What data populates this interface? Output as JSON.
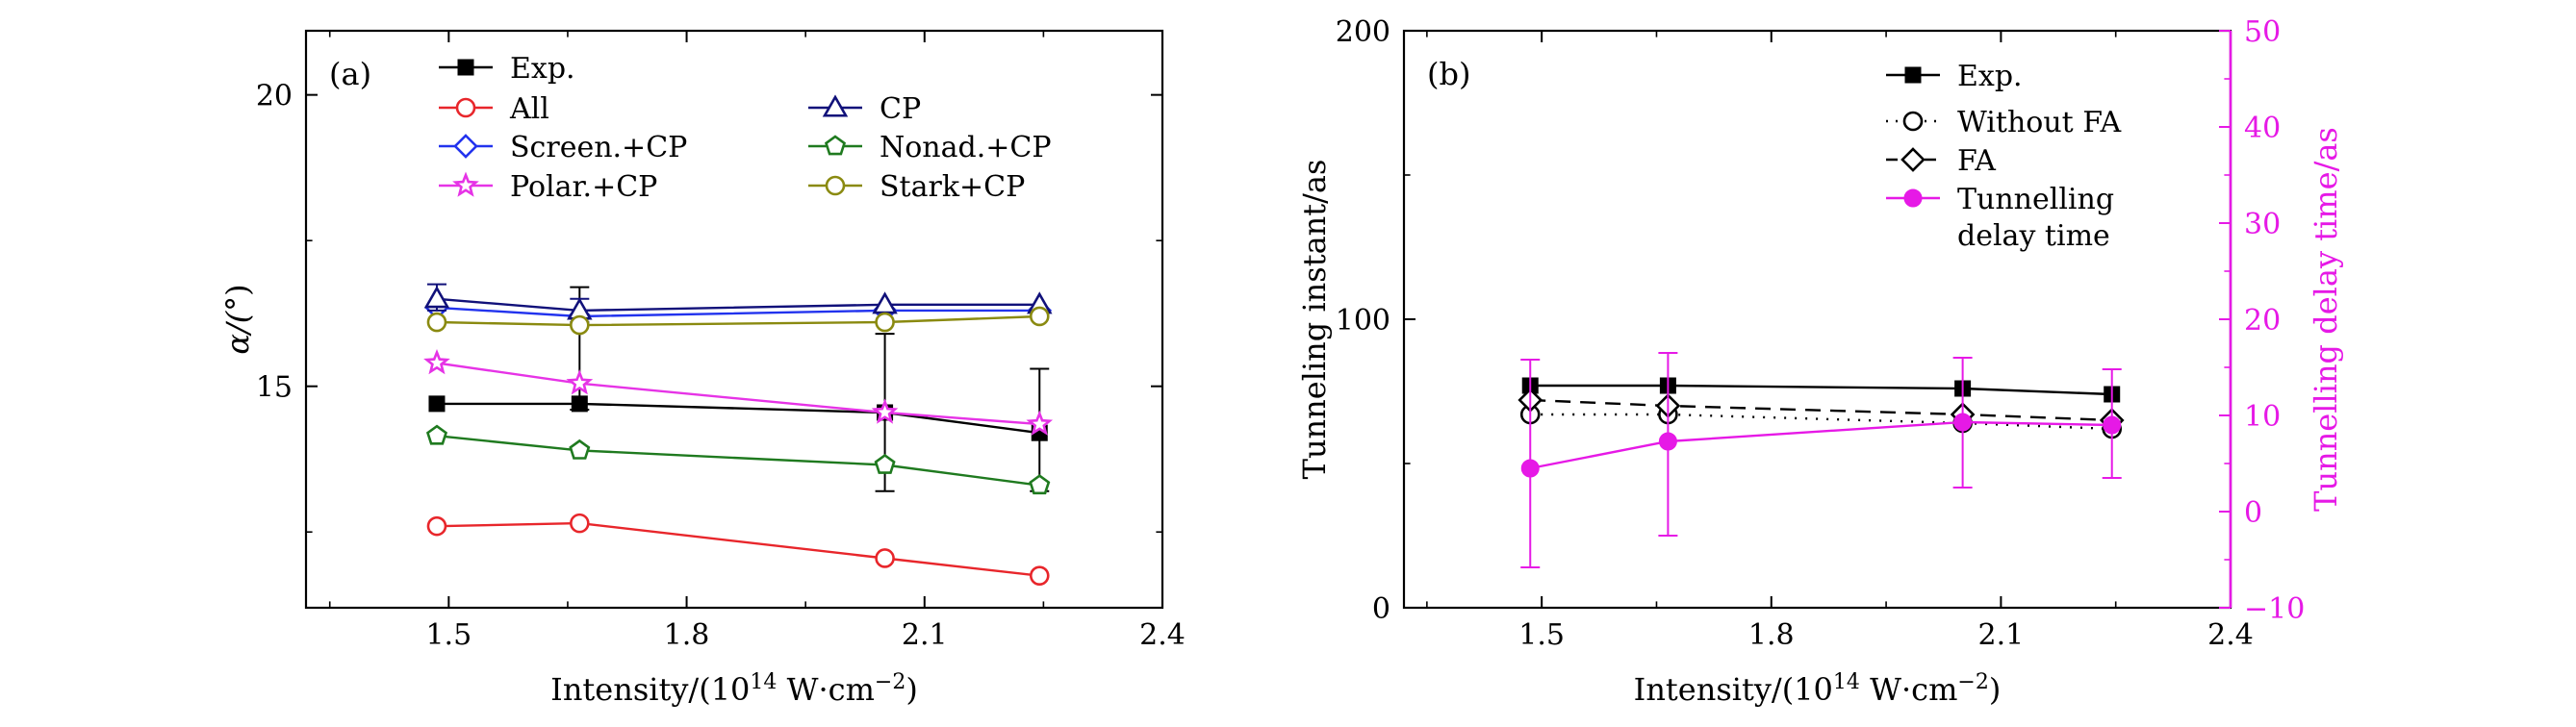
{
  "chart_data": [
    {
      "type": "line",
      "panel_label": "(a)",
      "xlabel_prefix": "Intensity/(10",
      "xlabel_exp1": "14",
      "xlabel_mid": " W·cm",
      "xlabel_exp2": "−2",
      "xlabel_suffix": ")",
      "ylabel_prefix": "α/(",
      "ylabel_degree": "°",
      "ylabel_suffix": ")",
      "xlim": [
        1.32,
        2.4
      ],
      "ylim": [
        11.2,
        21.1
      ],
      "xticks": [
        1.5,
        1.8,
        2.1,
        2.4
      ],
      "xtick_labels": [
        "1.5",
        "1.8",
        "2.1",
        "2.4"
      ],
      "yticks": [
        15,
        20
      ],
      "ytick_labels": [
        "15",
        "20"
      ],
      "legend_position": "top",
      "x": [
        1.485,
        1.665,
        2.05,
        2.245
      ],
      "series": [
        {
          "name": "Exp.",
          "values": [
            14.7,
            14.7,
            14.55,
            14.2
          ],
          "color": "#000000",
          "marker": "square-filled",
          "dash": "solid",
          "error": [
            [
              null,
              null
            ],
            [
              14.6,
              16.7
            ],
            [
              13.2,
              15.9
            ],
            [
              13.2,
              15.3
            ]
          ]
        },
        {
          "name": "All",
          "values": [
            12.6,
            12.65,
            12.05,
            11.75
          ],
          "color": "#e8262b",
          "marker": "circle",
          "dash": "solid"
        },
        {
          "name": "Screen.+CP",
          "values": [
            16.35,
            16.2,
            16.3,
            16.3
          ],
          "color": "#2233ee",
          "marker": "diamond",
          "dash": "solid"
        },
        {
          "name": "Polar.+CP",
          "values": [
            15.4,
            15.05,
            14.55,
            14.35
          ],
          "color": "#e633e6",
          "marker": "star",
          "dash": "solid"
        },
        {
          "name": "CP",
          "values": [
            16.5,
            16.3,
            16.4,
            16.4
          ],
          "color": "#11117a",
          "marker": "triangle",
          "dash": "solid",
          "error": [
            [
              16.3,
              16.75
            ],
            [
              16.1,
              16.5
            ],
            [
              null,
              null
            ],
            [
              null,
              null
            ]
          ]
        },
        {
          "name": "Nonad.+CP",
          "values": [
            14.15,
            13.9,
            13.65,
            13.3
          ],
          "color": "#1f7a1f",
          "marker": "pentagon",
          "dash": "solid"
        },
        {
          "name": "Stark+CP",
          "values": [
            16.1,
            16.05,
            16.1,
            16.2
          ],
          "color": "#8a8a10",
          "marker": "circle",
          "dash": "solid"
        }
      ]
    },
    {
      "type": "line",
      "panel_label": "(b)",
      "xlabel_prefix": "Intensity/(10",
      "xlabel_exp1": "14",
      "xlabel_mid": " W·cm",
      "xlabel_exp2": "−2",
      "xlabel_suffix": ")",
      "ylabel_left": "Tunneling instant/as",
      "ylabel_right": "Tunnelling delay time/as",
      "right_axis_color": "#e619e6",
      "xlim": [
        1.32,
        2.4
      ],
      "ylim_left": [
        0,
        200
      ],
      "ylim_right": [
        -10,
        50
      ],
      "xticks": [
        1.5,
        1.8,
        2.1,
        2.4
      ],
      "xtick_labels": [
        "1.5",
        "1.8",
        "2.1",
        "2.4"
      ],
      "yticks_left": [
        0,
        100,
        200
      ],
      "ytick_labels_left": [
        "0",
        "100",
        "200"
      ],
      "yticks_right": [
        -10,
        0,
        10,
        20,
        30,
        40,
        50
      ],
      "ytick_labels_right": [
        "−10",
        "0",
        "10",
        "20",
        "30",
        "40",
        "50"
      ],
      "legend_position": "top-right",
      "x": [
        1.485,
        1.665,
        2.05,
        2.245
      ],
      "series": [
        {
          "name": "Exp.",
          "axis": "left",
          "values": [
            77,
            77,
            76,
            74
          ],
          "color": "#000000",
          "marker": "square-filled",
          "dash": "solid"
        },
        {
          "name": "Without FA",
          "axis": "left",
          "values": [
            67,
            67,
            64,
            62
          ],
          "color": "#000000",
          "marker": "circle",
          "dash": "dotted"
        },
        {
          "name": "FA",
          "axis": "left",
          "values": [
            72,
            70,
            67,
            65
          ],
          "color": "#000000",
          "marker": "diamond",
          "dash": "dashed"
        },
        {
          "name": "Tunnelling delay time",
          "legend_lines": [
            "Tunnelling",
            "delay time"
          ],
          "axis": "right",
          "values": [
            4.5,
            7.3,
            9.3,
            9.0
          ],
          "color": "#e619e6",
          "marker": "circle-filled",
          "dash": "solid",
          "error": [
            [
              -5.8,
              15.8
            ],
            [
              -2.5,
              16.5
            ],
            [
              2.5,
              16.0
            ],
            [
              3.5,
              14.8
            ]
          ]
        }
      ]
    }
  ]
}
